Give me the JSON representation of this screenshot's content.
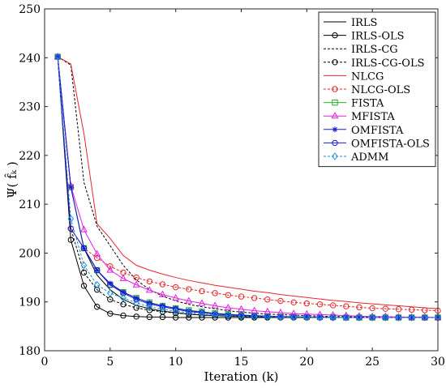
{
  "chart_data": {
    "type": "line",
    "xlabel": "Iteration (k)",
    "ylabel": "Ψ( f̂ₖ )",
    "xlim": [
      0,
      30
    ],
    "ylim": [
      180,
      250
    ],
    "xticks": [
      0,
      5,
      10,
      15,
      20,
      25,
      30
    ],
    "yticks": [
      180,
      190,
      200,
      210,
      220,
      230,
      240,
      250
    ],
    "grid": false,
    "legend_position": "top-right",
    "x": [
      1,
      2,
      3,
      4,
      5,
      6,
      7,
      8,
      9,
      10,
      11,
      12,
      13,
      14,
      15,
      16,
      17,
      18,
      19,
      20,
      21,
      22,
      23,
      24,
      25,
      26,
      27,
      28,
      29,
      30
    ],
    "series": [
      {
        "name": "IRLS",
        "color": "#000000",
        "dash": "solid",
        "marker": "none",
        "values": [
          240.2,
          213.5,
          201.0,
          195.5,
          192.5,
          190.5,
          189.3,
          188.6,
          188.1,
          187.8,
          187.5,
          187.3,
          187.2,
          187.1,
          187.0,
          187.0,
          186.9,
          186.9,
          186.9,
          186.8,
          186.8,
          186.8,
          186.8,
          186.8,
          186.8,
          186.8,
          186.8,
          186.8,
          186.8,
          186.8
        ]
      },
      {
        "name": "IRLS-OLS",
        "color": "#000000",
        "dash": "solid",
        "marker": "circle",
        "values": [
          240.2,
          202.7,
          193.3,
          189.0,
          187.6,
          187.2,
          187.0,
          186.9,
          186.9,
          186.8,
          186.8,
          186.8,
          186.8,
          186.8,
          186.8,
          186.8,
          186.8,
          186.8,
          186.8,
          186.8,
          186.8,
          186.8,
          186.8,
          186.8,
          186.8,
          186.8,
          186.8,
          186.8,
          186.8,
          186.8
        ]
      },
      {
        "name": "IRLS-CG",
        "color": "#000000",
        "dash": "dashed",
        "marker": "none",
        "values": [
          240.2,
          238.5,
          214.5,
          205.5,
          201.5,
          197.5,
          194.5,
          192.5,
          191.2,
          190.2,
          189.5,
          189.0,
          188.6,
          188.2,
          187.9,
          187.7,
          187.5,
          187.4,
          187.3,
          187.2,
          187.1,
          187.0,
          187.0,
          186.9,
          186.9,
          186.9,
          186.8,
          186.8,
          186.8,
          186.8
        ]
      },
      {
        "name": "IRLS-CG-OLS",
        "color": "#000000",
        "dash": "dashed",
        "marker": "circle",
        "values": [
          240.2,
          205.0,
          196.0,
          192.5,
          190.5,
          189.5,
          188.8,
          188.3,
          188.0,
          187.7,
          187.5,
          187.3,
          187.2,
          187.1,
          187.0,
          187.0,
          186.9,
          186.9,
          186.9,
          186.8,
          186.8,
          186.8,
          186.8,
          186.8,
          186.8,
          186.8,
          186.8,
          186.8,
          186.8,
          186.8
        ]
      },
      {
        "name": "NLCG",
        "color": "#e8262b",
        "dash": "solid",
        "marker": "none",
        "values": [
          240.2,
          238.7,
          224.5,
          206.0,
          203.0,
          199.5,
          197.5,
          196.5,
          195.7,
          195.0,
          194.4,
          193.9,
          193.4,
          193.0,
          192.6,
          192.2,
          191.9,
          191.5,
          191.2,
          190.9,
          190.6,
          190.3,
          190.1,
          189.8,
          189.6,
          189.4,
          189.2,
          189.0,
          188.8,
          188.6
        ]
      },
      {
        "name": "NLCG-OLS",
        "color": "#e8262b",
        "dash": "dashed",
        "marker": "circle",
        "values": [
          240.2,
          205.0,
          201.0,
          199.0,
          197.3,
          196.0,
          195.0,
          194.2,
          193.6,
          193.0,
          192.6,
          192.2,
          191.8,
          191.4,
          191.1,
          190.8,
          190.5,
          190.2,
          189.9,
          189.7,
          189.5,
          189.3,
          189.1,
          188.9,
          188.7,
          188.6,
          188.5,
          188.4,
          188.3,
          188.2
        ]
      },
      {
        "name": "FISTA",
        "color": "#22b522",
        "dash": "solid",
        "marker": "square",
        "values": [
          240.2,
          213.5,
          201.0,
          196.5,
          193.5,
          192.0,
          190.8,
          189.9,
          189.2,
          188.7,
          188.3,
          188.0,
          187.7,
          187.5,
          187.3,
          187.2,
          187.1,
          187.0,
          187.0,
          186.9,
          186.9,
          186.9,
          186.8,
          186.8,
          186.8,
          186.8,
          186.8,
          186.8,
          186.8,
          186.8
        ]
      },
      {
        "name": "MFISTA",
        "color": "#e020e0",
        "dash": "solid",
        "marker": "triangle",
        "values": [
          240.2,
          213.8,
          204.8,
          199.8,
          196.5,
          194.8,
          193.5,
          192.4,
          191.5,
          190.8,
          190.2,
          189.7,
          189.2,
          188.8,
          188.5,
          188.2,
          188.0,
          187.8,
          187.6,
          187.5,
          187.4,
          187.3,
          187.2,
          187.1,
          187.0,
          187.0,
          186.9,
          186.9,
          186.9,
          186.8
        ]
      },
      {
        "name": "OMFISTA",
        "color": "#1a1ad6",
        "dash": "solid",
        "marker": "star",
        "values": [
          240.2,
          213.5,
          201.0,
          196.5,
          193.8,
          192.0,
          190.8,
          189.8,
          189.2,
          188.7,
          188.2,
          187.9,
          187.6,
          187.4,
          187.3,
          187.2,
          187.1,
          187.0,
          186.9,
          186.9,
          186.9,
          186.8,
          186.8,
          186.8,
          186.8,
          186.8,
          186.8,
          186.8,
          186.8,
          186.8
        ]
      },
      {
        "name": "OMFISTA-OLS",
        "color": "#1a1ad6",
        "dash": "solid",
        "marker": "circle",
        "values": [
          240.2,
          205.0,
          201.0,
          196.5,
          193.5,
          191.8,
          190.5,
          189.6,
          189.0,
          188.5,
          188.0,
          187.8,
          187.5,
          187.3,
          187.2,
          187.1,
          187.0,
          186.9,
          186.9,
          186.9,
          186.8,
          186.8,
          186.8,
          186.8,
          186.8,
          186.8,
          186.8,
          186.8,
          186.8,
          186.8
        ]
      },
      {
        "name": "ADMM",
        "color": "#1f8fd8",
        "dash": "dashed",
        "marker": "diamond",
        "values": [
          240.2,
          207.0,
          197.5,
          193.5,
          191.8,
          190.8,
          189.8,
          189.0,
          188.5,
          188.1,
          187.8,
          187.5,
          187.3,
          187.2,
          187.1,
          187.0,
          187.0,
          186.9,
          186.9,
          186.9,
          186.8,
          186.8,
          186.8,
          186.8,
          186.8,
          186.8,
          186.8,
          186.8,
          186.8,
          186.8
        ]
      }
    ]
  }
}
